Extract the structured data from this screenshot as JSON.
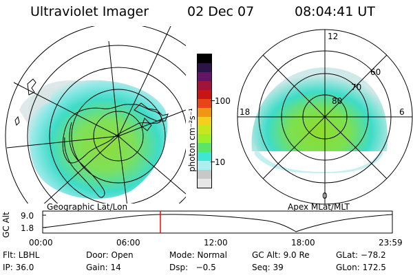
{
  "header": {
    "instrument": "Ultraviolet Imager",
    "date": "02 Dec 07",
    "time": "08:04:41 UT"
  },
  "geo_panel": {
    "caption": "Geographic Lat/Lon"
  },
  "colorbar": {
    "unit_label": "photon cm⁻²s⁻¹",
    "tick_100": "100",
    "tick_10": "10",
    "colors": [
      "#e6e6e6",
      "#c8c8c8",
      "#aaf0f0",
      "#3ee6d4",
      "#5ae664",
      "#9bf02a",
      "#c8e61e",
      "#f0d21e",
      "#f09614",
      "#e64614",
      "#c81414",
      "#a0143c",
      "#641464",
      "#2d1446",
      "#000000"
    ]
  },
  "mlt_panel": {
    "caption": "Apex MLat/MLT",
    "mlt_12": "12",
    "mlt_18": "18",
    "mlt_6": "6",
    "mlt_0": "0",
    "lat_60": "60",
    "lat_70": "70",
    "lat_80": "80"
  },
  "altitude_plot": {
    "ylabel": "GC Alt",
    "ytick_high": "9.0",
    "ytick_low": "1.8",
    "xticks": [
      "00:00",
      "06:00",
      "12:00",
      "18:00",
      "23:59"
    ],
    "marker_time": "08:04:41",
    "marker_color": "#ff0000"
  },
  "info": {
    "flt": "Flt: LBHL",
    "door": "Door: Open",
    "mode": "Mode: Normal",
    "gc_alt": "GC Alt: 9.0 Re",
    "glat": "GLat: −78.2",
    "ip": "IP: 36.0",
    "gain": "Gain: 14",
    "dsp": "Dsp:   −0.5",
    "seq": "Seq: 39",
    "glon": "GLon: 172.5"
  }
}
